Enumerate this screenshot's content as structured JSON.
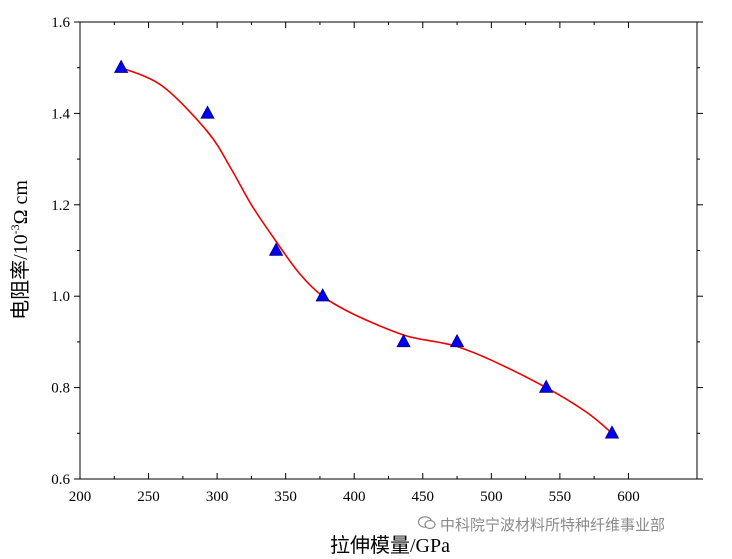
{
  "chart_data": {
    "type": "line",
    "xlabel": "拉伸模量/GPa",
    "ylabel_main": "电阻率/10",
    "ylabel_exp": "-3",
    "ylabel_unit": "Ω cm",
    "xlim": [
      200,
      650
    ],
    "ylim": [
      0.6,
      1.6
    ],
    "xticks": [
      "200",
      "250",
      "300",
      "350",
      "400",
      "450",
      "500",
      "550",
      "600"
    ],
    "yticks": [
      "0.6",
      "0.8",
      "1.0",
      "1.2",
      "1.4",
      "1.6"
    ],
    "grid": false,
    "series": [
      {
        "marker": "triangle",
        "color": "#0000ee",
        "x": [
          230,
          293,
          343,
          377,
          436,
          475,
          540,
          588
        ],
        "y": [
          1.5,
          1.4,
          1.1,
          1.0,
          0.9,
          0.9,
          0.8,
          0.7
        ]
      }
    ],
    "fit_curve": {
      "color": "#ee0000",
      "x": [
        230,
        260,
        293,
        310,
        325,
        343,
        360,
        377,
        400,
        436,
        460,
        475,
        500,
        540,
        570,
        588
      ],
      "y": [
        1.5,
        1.46,
        1.36,
        1.28,
        1.2,
        1.12,
        1.05,
        1.0,
        0.96,
        0.915,
        0.9,
        0.89,
        0.86,
        0.8,
        0.745,
        0.7
      ]
    }
  },
  "watermark": {
    "icon": "wechat-icon",
    "text": "中科院宁波材料所特种纤维事业部"
  }
}
